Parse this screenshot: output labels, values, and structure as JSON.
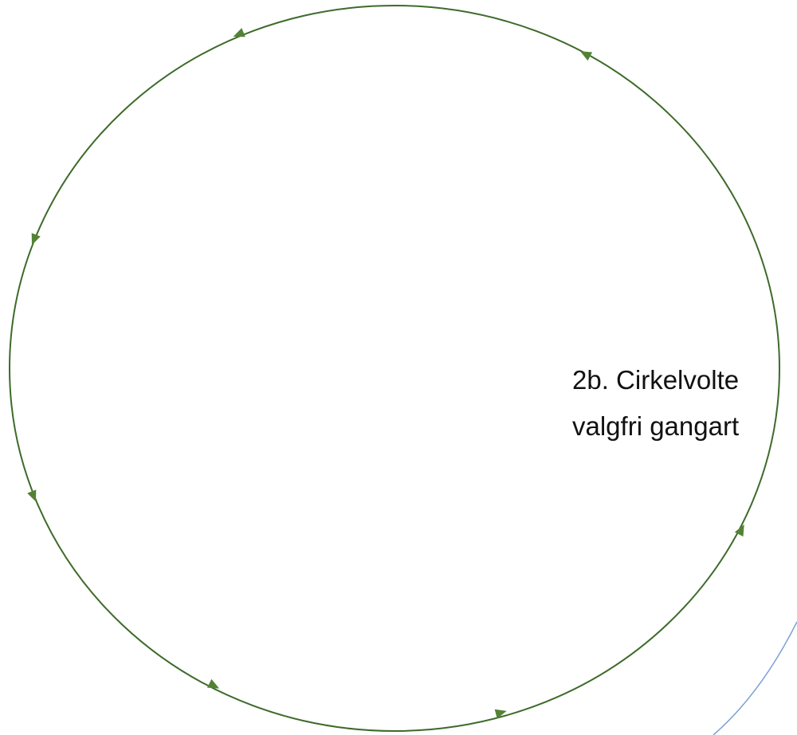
{
  "label": {
    "lines": [
      "2b. Cirkelvolte",
      "valgfri gangart"
    ]
  }
}
